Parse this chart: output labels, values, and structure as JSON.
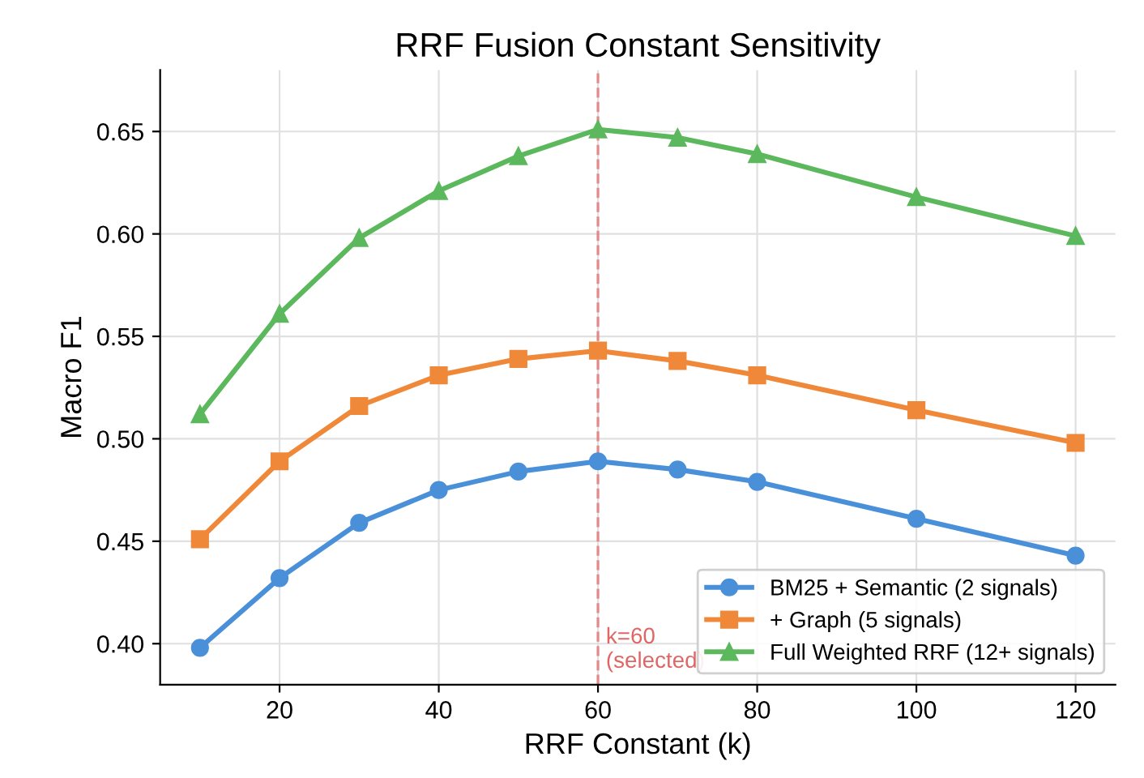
{
  "chart_data": {
    "type": "line",
    "title": "RRF Fusion Constant Sensitivity",
    "xlabel": "RRF Constant (k)",
    "ylabel": "Macro F1",
    "x": [
      10,
      20,
      30,
      40,
      50,
      60,
      70,
      80,
      100,
      120
    ],
    "series": [
      {
        "name": "BM25 + Semantic (2 signals)",
        "color": "#4a90d9",
        "marker": "circle",
        "values": [
          0.398,
          0.432,
          0.459,
          0.475,
          0.484,
          0.489,
          0.485,
          0.479,
          0.461,
          0.443
        ]
      },
      {
        "name": "+ Graph (5 signals)",
        "color": "#f0883a",
        "marker": "square",
        "values": [
          0.451,
          0.489,
          0.516,
          0.531,
          0.539,
          0.543,
          0.538,
          0.531,
          0.514,
          0.498
        ]
      },
      {
        "name": "Full Weighted RRF (12+ signals)",
        "color": "#5cb85c",
        "marker": "triangle",
        "values": [
          0.512,
          0.561,
          0.598,
          0.621,
          0.638,
          0.651,
          0.647,
          0.639,
          0.618,
          0.599
        ]
      }
    ],
    "xlim": [
      5,
      125
    ],
    "ylim": [
      0.38,
      0.68
    ],
    "xticks": [
      20,
      40,
      60,
      80,
      100,
      120
    ],
    "yticks": [
      {
        "value": 0.4,
        "label": "0.40"
      },
      0.45,
      {
        "value": 0.5,
        "label": "0.50"
      },
      0.55,
      {
        "value": 0.6,
        "label": "0.60"
      },
      0.65
    ],
    "ref_lines": [
      {
        "axis": "x",
        "value": 60,
        "label": "k=60\n(selected)",
        "color": "#e06666",
        "line_style": "dashed"
      }
    ],
    "grid": true,
    "legend": "bottom right",
    "line_style": "solid"
  }
}
